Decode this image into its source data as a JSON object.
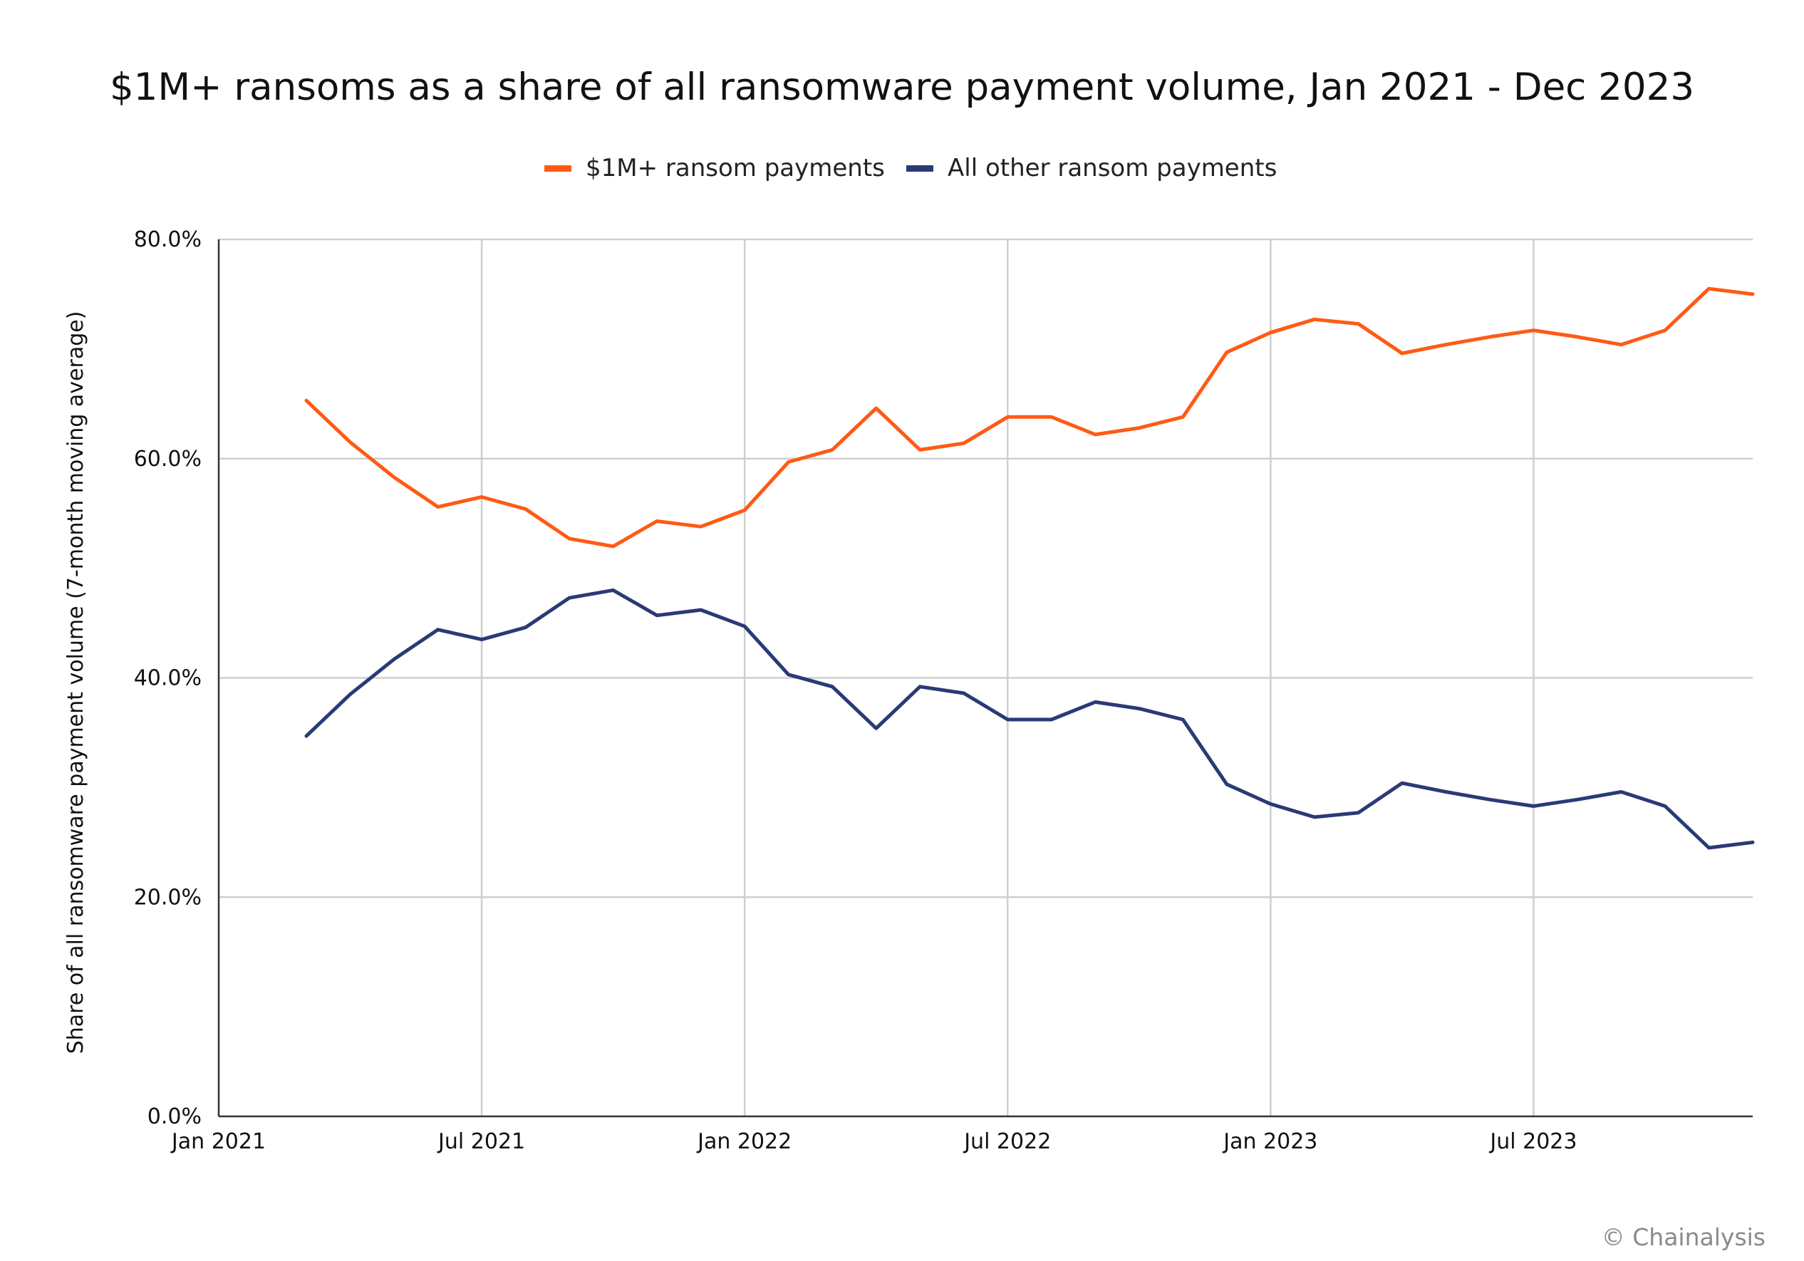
{
  "chart_data": {
    "type": "line",
    "title": "$1M+ ransoms as a share of all ransomware payment volume, Jan 2021 - Dec 2023",
    "ylabel": "Share of all ransomware payment volume (7-month moving average)",
    "xlabel": "",
    "ylim": [
      0,
      80
    ],
    "y_ticks": [
      0,
      20,
      40,
      60,
      80
    ],
    "y_tick_labels": [
      "0.0%",
      "20.0%",
      "40.0%",
      "60.0%",
      "80.0%"
    ],
    "x_start": "2021-01",
    "x_end": "2023-12",
    "x_ticks": [
      "2021-01",
      "2021-07",
      "2022-01",
      "2022-07",
      "2023-01",
      "2023-07"
    ],
    "x_tick_labels": [
      "Jan 2021",
      "Jul 2021",
      "Jan 2022",
      "Jul 2022",
      "Jan 2023",
      "Jul 2023"
    ],
    "grid": true,
    "legend_position": "top",
    "x": [
      "2021-03",
      "2021-04",
      "2021-05",
      "2021-06",
      "2021-07",
      "2021-08",
      "2021-09",
      "2021-10",
      "2021-11",
      "2021-12",
      "2022-01",
      "2022-02",
      "2022-03",
      "2022-04",
      "2022-05",
      "2022-06",
      "2022-07",
      "2022-08",
      "2022-09",
      "2022-10",
      "2022-11",
      "2022-12",
      "2023-01",
      "2023-02",
      "2023-03",
      "2023-04",
      "2023-05",
      "2023-06",
      "2023-07",
      "2023-08",
      "2023-09",
      "2023-10",
      "2023-11",
      "2023-12"
    ],
    "series": [
      {
        "name": "$1M+ ransom payments",
        "color": "#ff5a14",
        "values": [
          65.3,
          61.5,
          58.3,
          55.6,
          56.5,
          55.4,
          52.7,
          52.0,
          54.3,
          53.8,
          55.3,
          59.7,
          60.8,
          64.6,
          60.8,
          61.4,
          63.8,
          63.8,
          62.2,
          62.8,
          63.8,
          69.7,
          71.5,
          72.7,
          72.3,
          69.6,
          70.4,
          71.1,
          71.7,
          71.1,
          70.4,
          71.7,
          75.5,
          75.0
        ]
      },
      {
        "name": "All other ransom payments",
        "color": "#2a3a75",
        "values": [
          34.7,
          38.5,
          41.7,
          44.4,
          43.5,
          44.6,
          47.3,
          48.0,
          45.7,
          46.2,
          44.7,
          40.3,
          39.2,
          35.4,
          39.2,
          38.6,
          36.2,
          36.2,
          37.8,
          37.2,
          36.2,
          30.3,
          28.5,
          27.3,
          27.7,
          30.4,
          29.6,
          28.9,
          28.3,
          28.9,
          29.6,
          28.3,
          24.5,
          25.0
        ]
      }
    ]
  },
  "credit": "© Chainalysis"
}
